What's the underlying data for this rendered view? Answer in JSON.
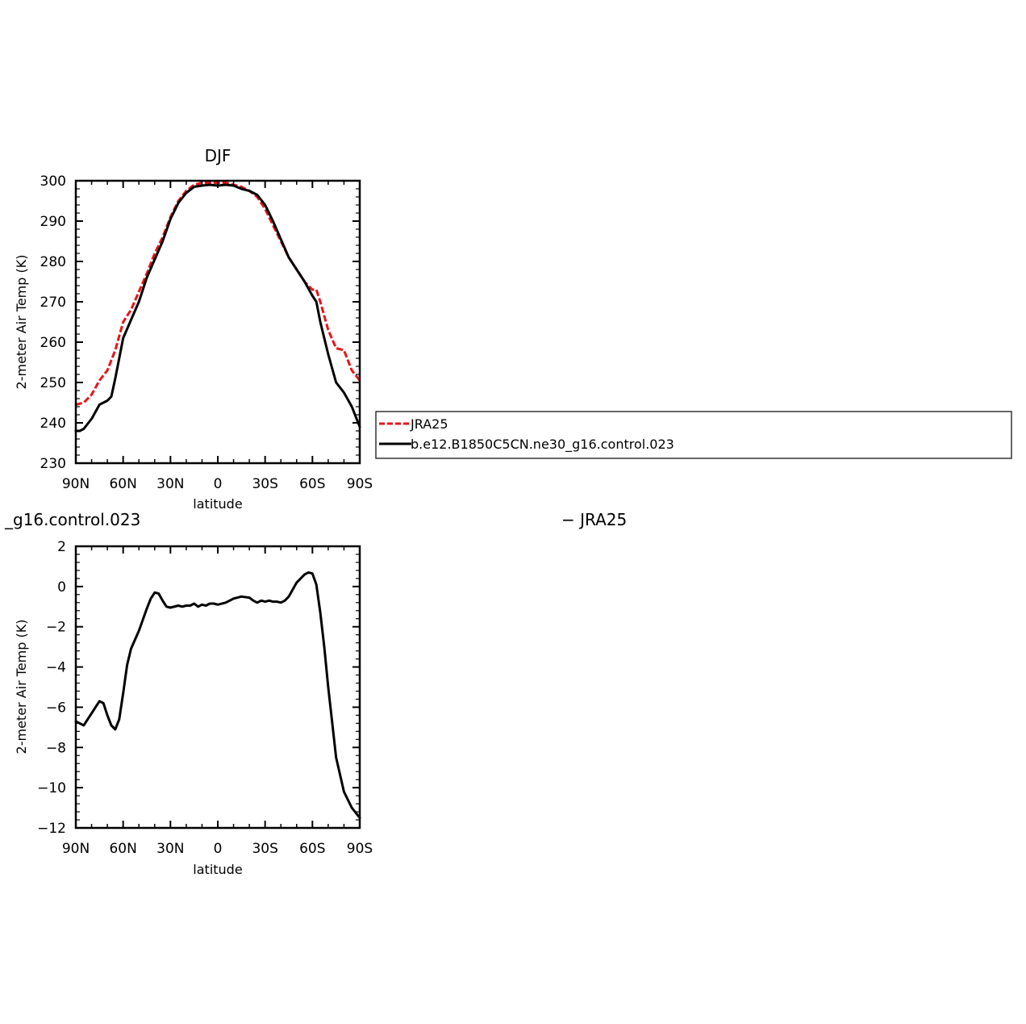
{
  "chart_data": [
    {
      "type": "line",
      "title": "DJF",
      "xlabel": "latitude",
      "ylabel": "2-meter Air Temp (K)",
      "x_tick_labels": [
        "90N",
        "60N",
        "30N",
        "0",
        "30S",
        "60S",
        "90S"
      ],
      "x_tick_values": [
        90,
        60,
        30,
        0,
        -30,
        -60,
        -90
      ],
      "xlim": [
        90,
        -90
      ],
      "ylim": [
        230,
        300
      ],
      "y_ticks": [
        230,
        240,
        250,
        260,
        270,
        280,
        290,
        300
      ],
      "y_tick_labels": [
        "230",
        "240",
        "250",
        "260",
        "270",
        "280",
        "290",
        "300"
      ],
      "grid": false,
      "legend_position": "right",
      "series": [
        {
          "name": "JRA25",
          "color": "#e8141c",
          "dash": "dashed",
          "x": [
            90,
            85,
            80,
            75,
            70,
            65,
            60,
            55,
            50,
            45,
            40,
            35,
            30,
            25,
            20,
            15,
            10,
            5,
            0,
            -5,
            -10,
            -15,
            -20,
            -25,
            -30,
            -35,
            -40,
            -45,
            -50,
            -55,
            -60,
            -62.5,
            -65,
            -70,
            -75,
            -80,
            -85,
            -90
          ],
          "values": [
            244.5,
            245,
            247,
            250.5,
            253,
            258,
            265,
            268,
            272.5,
            277,
            282,
            286,
            291,
            295,
            297.5,
            299,
            299.5,
            299.5,
            299.5,
            299.5,
            299,
            298.5,
            297.5,
            296,
            293,
            289,
            285,
            281,
            278,
            275,
            273,
            273,
            270,
            263,
            258.5,
            258,
            253,
            250.5
          ]
        },
        {
          "name": "b.e12.B1850C5CN.ne30_g16.control.023",
          "color": "#000000",
          "dash": "solid",
          "x": [
            90,
            87.5,
            85,
            80,
            75,
            70,
            67.5,
            65,
            60,
            55,
            50,
            45,
            40,
            35,
            30,
            25,
            20,
            15,
            10,
            5,
            0,
            -5,
            -10,
            -15,
            -20,
            -25,
            -30,
            -35,
            -40,
            -45,
            -50,
            -55,
            -60,
            -62.5,
            -65,
            -70,
            -75,
            -80,
            -85,
            -90
          ],
          "values": [
            238,
            238,
            238.5,
            241,
            244.5,
            245.5,
            246.5,
            251,
            261,
            265.5,
            270,
            276,
            280.5,
            285,
            290.5,
            294.5,
            297,
            298.5,
            298.8,
            299,
            298.8,
            299,
            298.8,
            298,
            297.5,
            296.5,
            294,
            290,
            285.5,
            281,
            278,
            275,
            271.5,
            270,
            265,
            257,
            250,
            247.5,
            244,
            239
          ]
        }
      ]
    },
    {
      "type": "line",
      "title": "_g16.control.023",
      "title_right": "− JRA25",
      "xlabel": "latitude",
      "ylabel": "2-meter Air Temp (K)",
      "x_tick_labels": [
        "90N",
        "60N",
        "30N",
        "0",
        "30S",
        "60S",
        "90S"
      ],
      "x_tick_values": [
        90,
        60,
        30,
        0,
        -30,
        -60,
        -90
      ],
      "xlim": [
        90,
        -90
      ],
      "ylim": [
        -12,
        2
      ],
      "y_ticks": [
        -12,
        -10,
        -8,
        -6,
        -4,
        -2,
        0,
        2
      ],
      "y_tick_labels": [
        "−12",
        "−10",
        "−8",
        "−6",
        "−4",
        "−2",
        "0",
        "2"
      ],
      "grid": false,
      "series": [
        {
          "color": "#000000",
          "dash": "solid",
          "x": [
            90,
            85,
            80,
            77.5,
            75,
            72.5,
            70,
            67.5,
            65,
            62.5,
            60,
            57.5,
            55,
            50,
            45,
            42.5,
            40,
            37.5,
            35,
            32.5,
            30,
            25,
            22.5,
            20,
            17.5,
            15,
            12.5,
            10,
            7.5,
            5,
            2.5,
            0,
            -5,
            -10,
            -15,
            -20,
            -22.5,
            -25,
            -27.5,
            -30,
            -32.5,
            -35,
            -37.5,
            -40,
            -42.5,
            -45,
            -50,
            -55,
            -57.5,
            -60,
            -62.5,
            -65,
            -67.5,
            -70,
            -75,
            -80,
            -85,
            -90
          ],
          "values": [
            -6.7,
            -6.9,
            -6.3,
            -6,
            -5.7,
            -5.8,
            -6.4,
            -6.9,
            -7.1,
            -6.6,
            -5.3,
            -3.9,
            -3.1,
            -2.2,
            -1.1,
            -0.6,
            -0.3,
            -0.35,
            -0.7,
            -1,
            -1.05,
            -0.95,
            -1,
            -0.95,
            -0.95,
            -0.85,
            -1,
            -0.9,
            -0.95,
            -0.85,
            -0.85,
            -0.9,
            -0.8,
            -0.6,
            -0.5,
            -0.55,
            -0.7,
            -0.8,
            -0.7,
            -0.75,
            -0.7,
            -0.75,
            -0.75,
            -0.8,
            -0.7,
            -0.5,
            0.2,
            0.6,
            0.7,
            0.65,
            0.1,
            -1.3,
            -3,
            -5,
            -8.5,
            -10.2,
            -11,
            -11.5
          ]
        }
      ]
    }
  ]
}
